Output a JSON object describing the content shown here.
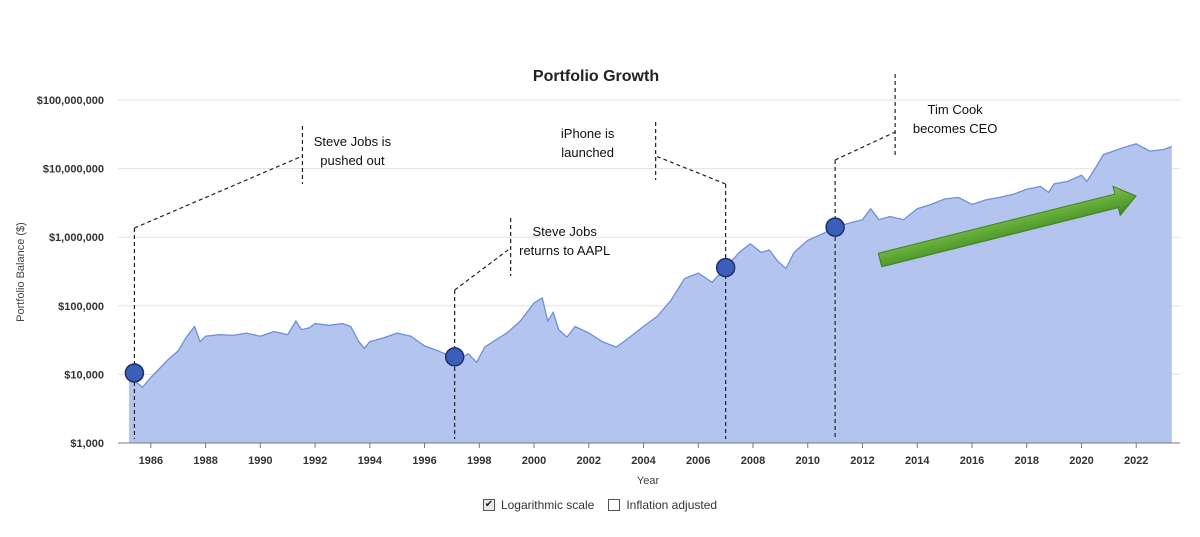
{
  "chart_data": {
    "type": "area",
    "title": "Portfolio Growth",
    "xlabel": "Year",
    "ylabel": "Portfolio Balance ($)",
    "yscale": "log",
    "ylim": [
      1000,
      100000000
    ],
    "xlim": [
      1984.8,
      2023.6
    ],
    "yticks": [
      {
        "value": 1000,
        "label": "$1,000"
      },
      {
        "value": 10000,
        "label": "$10,000"
      },
      {
        "value": 100000,
        "label": "$100,000"
      },
      {
        "value": 1000000,
        "label": "$1,000,000"
      },
      {
        "value": 10000000,
        "label": "$10,000,000"
      },
      {
        "value": 100000000,
        "label": "$100,000,000"
      }
    ],
    "xticks": [
      "1986",
      "1988",
      "1990",
      "1992",
      "1994",
      "1996",
      "1998",
      "2000",
      "2002",
      "2004",
      "2006",
      "2008",
      "2010",
      "2012",
      "2014",
      "2016",
      "2018",
      "2020",
      "2022"
    ],
    "grid": true,
    "colors": {
      "area_fill": "#b3c5ee",
      "area_line": "#6f8fd8",
      "marker_fill": "#3b5fb8",
      "marker_stroke": "#1d2f6b",
      "arrow": "#4d9a2c"
    },
    "series": [
      {
        "x": [
          1985.2,
          1985.5,
          1985.7,
          1986.0,
          1986.3,
          1986.6,
          1987.0,
          1987.3,
          1987.6,
          1987.8,
          1988.0,
          1988.5,
          1989.0,
          1989.5,
          1990.0,
          1990.5,
          1991.0,
          1991.3,
          1991.5,
          1991.8,
          1992.0,
          1992.5,
          1993.0,
          1993.3,
          1993.6,
          1993.8,
          1994.0,
          1994.5,
          1995.0,
          1995.5,
          1996.0,
          1996.5,
          1997.0,
          1997.3,
          1997.6,
          1997.9,
          1998.2,
          1998.5,
          1999.0,
          1999.5,
          2000.0,
          2000.3,
          2000.5,
          2000.7,
          2000.9,
          2001.2,
          2001.5,
          2002.0,
          2002.5,
          2003.0,
          2003.5,
          2004.0,
          2004.5,
          2005.0,
          2005.5,
          2006.0,
          2006.5,
          2007.0,
          2007.5,
          2007.9,
          2008.3,
          2008.6,
          2008.9,
          2009.2,
          2009.5,
          2010.0,
          2010.5,
          2011.0,
          2011.5,
          2012.0,
          2012.3,
          2012.6,
          2013.0,
          2013.5,
          2014.0,
          2014.5,
          2015.0,
          2015.5,
          2016.0,
          2016.5,
          2017.0,
          2017.5,
          2018.0,
          2018.5,
          2018.8,
          2019.0,
          2019.5,
          2020.0,
          2020.2,
          2020.5,
          2020.8,
          2021.0,
          2021.5,
          2022.0,
          2022.5,
          2023.0,
          2023.3
        ],
        "y": [
          10500,
          7500,
          6500,
          9000,
          12000,
          16000,
          22000,
          35000,
          50000,
          30000,
          36000,
          38000,
          37000,
          40000,
          36000,
          42000,
          38000,
          60000,
          45000,
          48000,
          55000,
          52000,
          55000,
          50000,
          30000,
          24000,
          30000,
          34000,
          40000,
          36000,
          26000,
          22000,
          18000,
          17000,
          20000,
          15000,
          25000,
          30000,
          40000,
          60000,
          110000,
          130000,
          60000,
          80000,
          45000,
          35000,
          50000,
          40000,
          30000,
          25000,
          35000,
          50000,
          70000,
          120000,
          250000,
          300000,
          220000,
          360000,
          600000,
          800000,
          600000,
          650000,
          450000,
          350000,
          600000,
          900000,
          1100000,
          1400000,
          1600000,
          1800000,
          2600000,
          1800000,
          2000000,
          1800000,
          2600000,
          3000000,
          3600000,
          3800000,
          3000000,
          3500000,
          3800000,
          4200000,
          5000000,
          5500000,
          4500000,
          6000000,
          6500000,
          8000000,
          6500000,
          10000000,
          16000000,
          17000000,
          20000000,
          23000000,
          18000000,
          19000000,
          21000000
        ]
      }
    ],
    "annotations": [
      {
        "label": "Steve Jobs is pushed out",
        "lines": [
          "Steve Jobs is",
          "pushed out"
        ],
        "x": 1985.4,
        "y": 10500
      },
      {
        "label": "Steve Jobs returns to AAPL",
        "lines": [
          "Steve Jobs",
          "returns to AAPL"
        ],
        "x": 1997.1,
        "y": 18000
      },
      {
        "label": "iPhone is launched",
        "lines": [
          "iPhone is",
          "launched"
        ],
        "x": 2007.0,
        "y": 360000
      },
      {
        "label": "Tim Cook becomes CEO",
        "lines": [
          "Tim Cook",
          "becomes CEO"
        ],
        "x": 2011.0,
        "y": 1400000
      }
    ]
  },
  "controls": {
    "log_scale": {
      "label": "Logarithmic scale",
      "checked": true
    },
    "inflation": {
      "label": "Inflation adjusted",
      "checked": false
    }
  }
}
